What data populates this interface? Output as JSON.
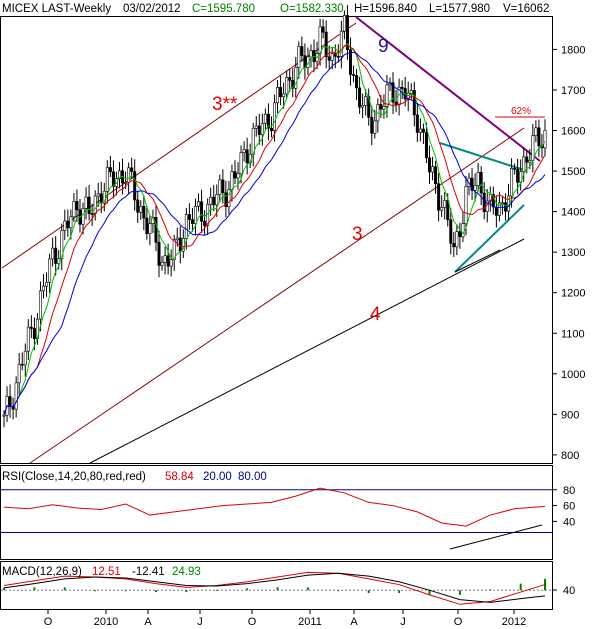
{
  "header": {
    "symbol": "MICEX LAST-Weekly",
    "date": "03/02/2012",
    "close": "C=1595.780",
    "open": "O=1582.330",
    "high": "H=1596.840",
    "low": "L=1577.980",
    "volume": "V=16062"
  },
  "colors": {
    "green_text": "#008000",
    "blue_text": "#00008b",
    "red_text": "#e00000",
    "channel": "#8b0000",
    "support": "#000000",
    "resistance": "#800080",
    "triangle": "#008b8b",
    "ma_fast": "#00c000",
    "ma_mid": "#e00000",
    "ma_slow": "#0000e0"
  },
  "chart_data": [
    {
      "type": "line",
      "role": "price",
      "ylim": [
        780,
        1880
      ],
      "yticks": [
        "1800",
        "1700",
        "1600",
        "1500",
        "1400",
        "1300",
        "1200",
        "1100",
        "1000",
        "900",
        "800"
      ],
      "xticks": [
        "O",
        "2010",
        "A",
        "J",
        "O",
        "2011",
        "A",
        "J",
        "O",
        "2012"
      ],
      "annotations": [
        "3**",
        "3",
        "4",
        "9",
        "62%"
      ],
      "series": [
        {
          "x": [
            0,
            4,
            8,
            12,
            16,
            20,
            24,
            28,
            32,
            36,
            40,
            44,
            48,
            52,
            56,
            60,
            64,
            68,
            72,
            76,
            80,
            84,
            88,
            92,
            96,
            100,
            104,
            108,
            112,
            116,
            120,
            124,
            128,
            132,
            136,
            140,
            144,
            148,
            152,
            156,
            160,
            164,
            168,
            172,
            178
          ],
          "values": [
            880,
            980,
            1080,
            1180,
            1290,
            1350,
            1420,
            1390,
            1460,
            1480,
            1500,
            1420,
            1360,
            1280,
            1290,
            1380,
            1390,
            1420,
            1450,
            1480,
            1560,
            1600,
            1640,
            1700,
            1760,
            1780,
            1820,
            1780,
            1840,
            1700,
            1620,
            1660,
            1700,
            1690,
            1640,
            1500,
            1430,
            1300,
            1440,
            1480,
            1400,
            1420,
            1480,
            1540,
            1595
          ]
        }
      ]
    },
    {
      "type": "line",
      "role": "indicator",
      "title": "RSI(Close,14,20,80,red,red)",
      "last_value": "58.84",
      "lower": "20.00",
      "upper": "80.00",
      "ylim": [
        0,
        100
      ],
      "yticks": [
        "80",
        "60",
        "40"
      ],
      "series": [
        {
          "x": [
            0,
            8,
            16,
            24,
            32,
            40,
            48,
            56,
            64,
            72,
            80,
            88,
            96,
            104,
            112,
            120,
            128,
            136,
            144,
            152,
            160,
            168,
            178
          ],
          "values": [
            58,
            56,
            61,
            57,
            55,
            62,
            48,
            52,
            56,
            60,
            62,
            64,
            72,
            82,
            76,
            64,
            60,
            52,
            38,
            34,
            48,
            56,
            59
          ]
        }
      ]
    },
    {
      "type": "line",
      "role": "indicator",
      "title": "MACD(12,26,9)",
      "macd": "12.51",
      "signal": "-12.41",
      "histogram": "24.93",
      "ylim": [
        -40,
        60
      ],
      "yticks": [
        "40"
      ],
      "series": [
        {
          "x": [
            0,
            10,
            20,
            30,
            40,
            50,
            60,
            70,
            80,
            90,
            100,
            110,
            120,
            130,
            140,
            150,
            160,
            170,
            178
          ],
          "values": [
            10,
            20,
            30,
            28,
            24,
            14,
            6,
            10,
            18,
            28,
            38,
            36,
            24,
            12,
            -10,
            -30,
            -24,
            -4,
            12
          ]
        },
        {
          "x": [
            0,
            10,
            20,
            30,
            40,
            50,
            60,
            70,
            80,
            90,
            100,
            110,
            120,
            130,
            140,
            150,
            160,
            170,
            178
          ],
          "values": [
            5,
            14,
            24,
            28,
            26,
            18,
            10,
            9,
            14,
            22,
            32,
            36,
            30,
            18,
            0,
            -20,
            -26,
            -18,
            -12
          ]
        }
      ]
    }
  ]
}
